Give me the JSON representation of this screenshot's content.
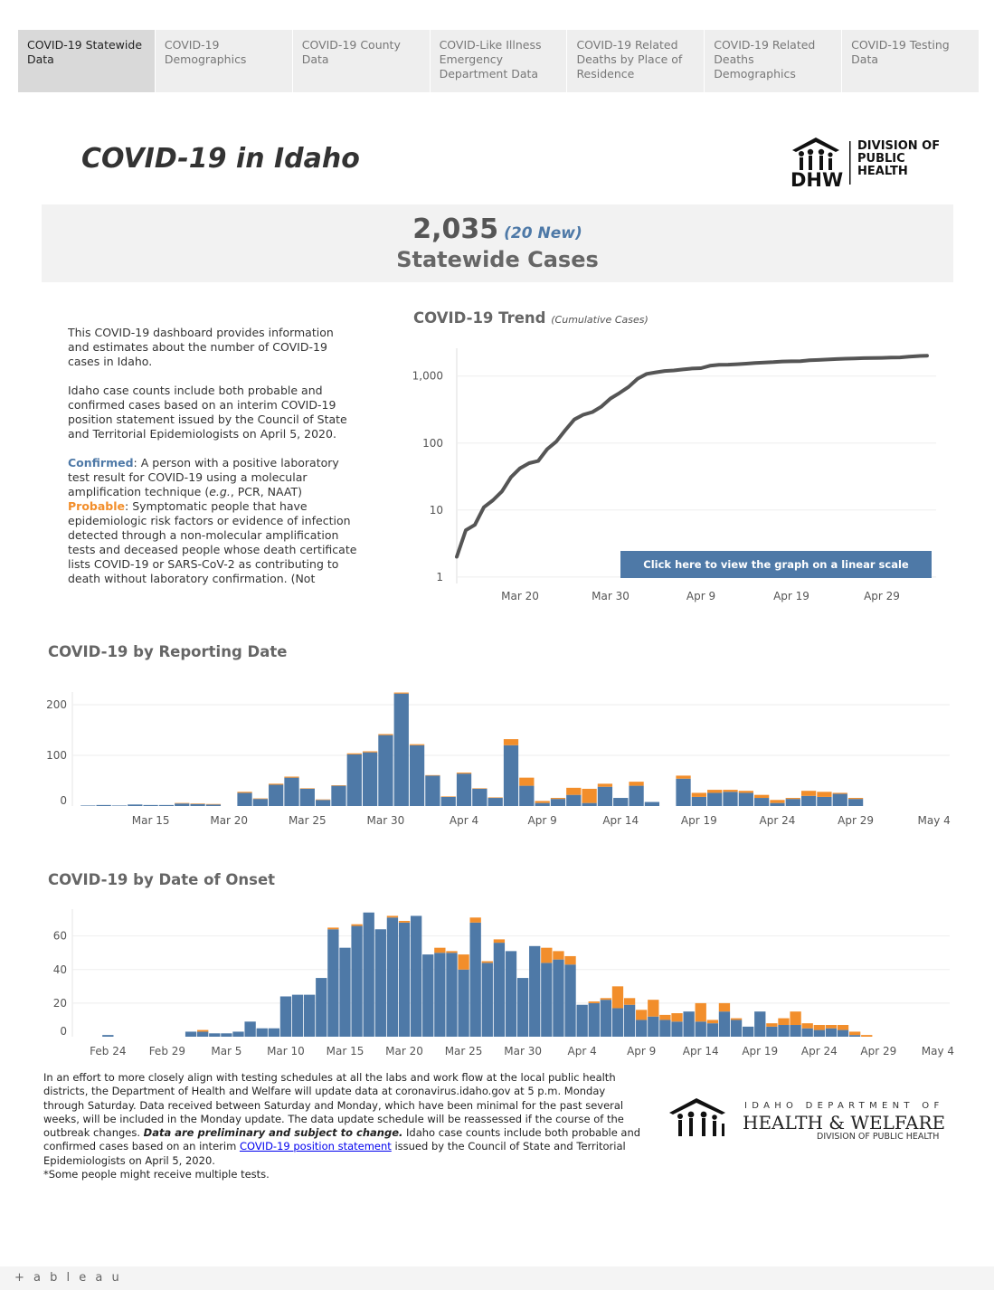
{
  "tabs": [
    {
      "label": "COVID-19 Statewide Data",
      "active": true
    },
    {
      "label": "COVID-19 Demographics"
    },
    {
      "label": "COVID-19 County Data"
    },
    {
      "label": "COVID-Like Illness Emergency Department Data"
    },
    {
      "label": "COVID-19 Related Deaths by Place of Residence"
    },
    {
      "label": "COVID-19 Related Deaths Demographics"
    },
    {
      "label": "COVID-19 Testing Data"
    }
  ],
  "header": {
    "title": "COVID-19 in Idaho",
    "logo_text": [
      "DIVISION OF",
      "PUBLIC",
      "HEALTH"
    ],
    "logo_mark": "DHW"
  },
  "kpi": {
    "value": "2,035",
    "new": "(20 New)",
    "label": "Statewide Cases"
  },
  "intro": {
    "p1": "This COVID-19 dashboard provides information and estimates about the number of COVID-19 cases in Idaho.",
    "p2": "Idaho case counts include both probable and confirmed cases based on an interim COVID-19 position statement issued by the Council of State and Territorial Epidemiologists on April 5, 2020.",
    "confirmed_label": "Confirmed",
    "confirmed_text_a": ": A person with a positive laboratory test result for COVID-19 using a molecular amplification technique (",
    "confirmed_eg": "e.g.",
    "confirmed_text_b": ", PCR, NAAT)",
    "probable_label": "Probable",
    "probable_text": ": Symptomatic people that have epidemiologic risk factors or evidence of infection detected through a non-molecular amplification tests and deceased people whose death certificate lists  COVID-19 or SARS-CoV-2 as contributing to death without laboratory confirmation. (Not includ.."
  },
  "trend_button": "Click here to view the graph on a linear scale",
  "colors": {
    "confirmed": "#4e79a7",
    "probable": "#f28e2b",
    "trend_line": "#555555"
  },
  "chart_data": [
    {
      "id": "trend",
      "type": "line",
      "title": "COVID-19 Trend",
      "subtitle": "(Cumulative Cases)",
      "yscale": "log",
      "yticks": [
        1,
        10,
        100,
        1000
      ],
      "ytick_labels": [
        "1",
        "10",
        "100",
        "1,000"
      ],
      "xlim": [
        "2020-03-13",
        "2020-05-05"
      ],
      "xticks": [
        {
          "date": "2020-03-20",
          "label": "Mar 20"
        },
        {
          "date": "2020-03-30",
          "label": "Mar 30"
        },
        {
          "date": "2020-04-09",
          "label": "Apr 9"
        },
        {
          "date": "2020-04-19",
          "label": "Apr 19"
        },
        {
          "date": "2020-04-29",
          "label": "Apr 29"
        }
      ],
      "x": [
        "2020-03-13",
        "2020-03-14",
        "2020-03-15",
        "2020-03-16",
        "2020-03-17",
        "2020-03-18",
        "2020-03-19",
        "2020-03-20",
        "2020-03-21",
        "2020-03-22",
        "2020-03-23",
        "2020-03-24",
        "2020-03-25",
        "2020-03-26",
        "2020-03-27",
        "2020-03-28",
        "2020-03-29",
        "2020-03-30",
        "2020-03-31",
        "2020-04-01",
        "2020-04-02",
        "2020-04-03",
        "2020-04-04",
        "2020-04-05",
        "2020-04-06",
        "2020-04-07",
        "2020-04-08",
        "2020-04-09",
        "2020-04-10",
        "2020-04-11",
        "2020-04-12",
        "2020-04-13",
        "2020-04-14",
        "2020-04-15",
        "2020-04-16",
        "2020-04-17",
        "2020-04-18",
        "2020-04-19",
        "2020-04-20",
        "2020-04-21",
        "2020-04-22",
        "2020-04-23",
        "2020-04-24",
        "2020-04-25",
        "2020-04-26",
        "2020-04-27",
        "2020-04-28",
        "2020-04-29",
        "2020-04-30",
        "2020-05-01",
        "2020-05-02",
        "2020-05-03",
        "2020-05-04"
      ],
      "values": [
        2,
        5,
        6,
        11,
        14,
        19,
        31,
        42,
        50,
        54,
        81,
        105,
        156,
        225,
        265,
        290,
        351,
        463,
        559,
        689,
        915,
        1078,
        1138,
        1191,
        1213,
        1257,
        1297,
        1311,
        1427,
        1473,
        1483,
        1505,
        1534,
        1568,
        1598,
        1614,
        1649,
        1662,
        1670,
        1720,
        1740,
        1768,
        1796,
        1818,
        1834,
        1855,
        1866,
        1871,
        1886,
        1901,
        1949,
        1987,
        2015
      ]
    },
    {
      "id": "reporting",
      "type": "bar",
      "stacked": true,
      "title": "COVID-19 by Reporting Date",
      "yticks": [
        0,
        100,
        200
      ],
      "ylim": [
        0,
        225
      ],
      "xlim": [
        "2020-03-10",
        "2020-05-05"
      ],
      "xticks": [
        {
          "date": "2020-03-15",
          "label": "Mar 15"
        },
        {
          "date": "2020-03-20",
          "label": "Mar 20"
        },
        {
          "date": "2020-03-25",
          "label": "Mar 25"
        },
        {
          "date": "2020-03-30",
          "label": "Mar 30"
        },
        {
          "date": "2020-04-04",
          "label": "Apr 4"
        },
        {
          "date": "2020-04-09",
          "label": "Apr 9"
        },
        {
          "date": "2020-04-14",
          "label": "Apr 14"
        },
        {
          "date": "2020-04-19",
          "label": "Apr 19"
        },
        {
          "date": "2020-04-24",
          "label": "Apr 24"
        },
        {
          "date": "2020-04-29",
          "label": "Apr 29"
        },
        {
          "date": "2020-05-04",
          "label": "May 4"
        }
      ],
      "x": [
        "2020-03-11",
        "2020-03-12",
        "2020-03-13",
        "2020-03-14",
        "2020-03-15",
        "2020-03-16",
        "2020-03-17",
        "2020-03-18",
        "2020-03-19",
        "2020-03-20",
        "2020-03-21",
        "2020-03-22",
        "2020-03-23",
        "2020-03-24",
        "2020-03-25",
        "2020-03-26",
        "2020-03-27",
        "2020-03-28",
        "2020-03-29",
        "2020-03-30",
        "2020-03-31",
        "2020-04-01",
        "2020-04-02",
        "2020-04-03",
        "2020-04-04",
        "2020-04-05",
        "2020-04-06",
        "2020-04-07",
        "2020-04-08",
        "2020-04-09",
        "2020-04-10",
        "2020-04-11",
        "2020-04-12",
        "2020-04-13",
        "2020-04-14",
        "2020-04-15",
        "2020-04-16",
        "2020-04-17",
        "2020-04-18",
        "2020-04-19",
        "2020-04-20",
        "2020-04-21",
        "2020-04-22",
        "2020-04-23",
        "2020-04-24",
        "2020-04-25",
        "2020-04-26",
        "2020-04-27",
        "2020-04-28",
        "2020-04-29",
        "2020-04-30",
        "2020-05-01",
        "2020-05-02"
      ],
      "series": [
        {
          "name": "Confirmed",
          "values": [
            1,
            2,
            1,
            3,
            2,
            2,
            5,
            4,
            3,
            0,
            26,
            14,
            42,
            56,
            34,
            12,
            40,
            102,
            106,
            140,
            222,
            120,
            60,
            18,
            64,
            34,
            16,
            120,
            40,
            6,
            14,
            22,
            6,
            38,
            16,
            40,
            8,
            0,
            54,
            18,
            26,
            28,
            26,
            16,
            6,
            14,
            20,
            18,
            24,
            14,
            0,
            0,
            0
          ]
        },
        {
          "name": "Probable",
          "values": [
            0,
            0,
            0,
            0,
            0,
            0,
            1,
            1,
            1,
            0,
            2,
            1,
            2,
            2,
            1,
            1,
            1,
            2,
            2,
            2,
            2,
            2,
            1,
            1,
            2,
            1,
            1,
            12,
            16,
            4,
            2,
            14,
            28,
            6,
            0,
            8,
            0,
            0,
            6,
            8,
            6,
            4,
            4,
            6,
            6,
            2,
            10,
            10,
            2,
            2,
            0,
            0,
            0
          ]
        }
      ]
    },
    {
      "id": "onset",
      "type": "bar",
      "stacked": true,
      "title": "COVID-19 by Date of Onset",
      "yticks": [
        0,
        20,
        40,
        60
      ],
      "ylim": [
        0,
        76
      ],
      "xlim": [
        "2020-02-21",
        "2020-05-05"
      ],
      "xticks": [
        {
          "date": "2020-02-24",
          "label": "Feb 24"
        },
        {
          "date": "2020-02-29",
          "label": "Feb 29"
        },
        {
          "date": "2020-03-05",
          "label": "Mar 5"
        },
        {
          "date": "2020-03-10",
          "label": "Mar 10"
        },
        {
          "date": "2020-03-15",
          "label": "Mar 15"
        },
        {
          "date": "2020-03-20",
          "label": "Mar 20"
        },
        {
          "date": "2020-03-25",
          "label": "Mar 25"
        },
        {
          "date": "2020-03-30",
          "label": "Mar 30"
        },
        {
          "date": "2020-04-04",
          "label": "Apr 4"
        },
        {
          "date": "2020-04-09",
          "label": "Apr 9"
        },
        {
          "date": "2020-04-14",
          "label": "Apr 14"
        },
        {
          "date": "2020-04-19",
          "label": "Apr 19"
        },
        {
          "date": "2020-04-24",
          "label": "Apr 24"
        },
        {
          "date": "2020-04-29",
          "label": "Apr 29"
        },
        {
          "date": "2020-05-04",
          "label": "May 4"
        }
      ],
      "x": [
        "2020-02-24",
        "2020-02-25",
        "2020-02-26",
        "2020-02-27",
        "2020-02-28",
        "2020-02-29",
        "2020-03-01",
        "2020-03-02",
        "2020-03-03",
        "2020-03-04",
        "2020-03-05",
        "2020-03-06",
        "2020-03-07",
        "2020-03-08",
        "2020-03-09",
        "2020-03-10",
        "2020-03-11",
        "2020-03-12",
        "2020-03-13",
        "2020-03-14",
        "2020-03-15",
        "2020-03-16",
        "2020-03-17",
        "2020-03-18",
        "2020-03-19",
        "2020-03-20",
        "2020-03-21",
        "2020-03-22",
        "2020-03-23",
        "2020-03-24",
        "2020-03-25",
        "2020-03-26",
        "2020-03-27",
        "2020-03-28",
        "2020-03-29",
        "2020-03-30",
        "2020-03-31",
        "2020-04-01",
        "2020-04-02",
        "2020-04-03",
        "2020-04-04",
        "2020-04-05",
        "2020-04-06",
        "2020-04-07",
        "2020-04-08",
        "2020-04-09",
        "2020-04-10",
        "2020-04-11",
        "2020-04-12",
        "2020-04-13",
        "2020-04-14",
        "2020-04-15",
        "2020-04-16",
        "2020-04-17",
        "2020-04-18",
        "2020-04-19",
        "2020-04-20",
        "2020-04-21",
        "2020-04-22",
        "2020-04-23",
        "2020-04-24",
        "2020-04-25",
        "2020-04-26",
        "2020-04-27",
        "2020-04-28",
        "2020-04-29",
        "2020-04-30",
        "2020-05-01",
        "2020-05-02"
      ],
      "series": [
        {
          "name": "Confirmed",
          "values": [
            1,
            0,
            0,
            0,
            0,
            0,
            0,
            3,
            3,
            2,
            2,
            3,
            9,
            5,
            5,
            24,
            25,
            25,
            35,
            64,
            53,
            66,
            74,
            64,
            71,
            68,
            72,
            49,
            50,
            50,
            40,
            68,
            44,
            56,
            51,
            35,
            54,
            44,
            46,
            43,
            19,
            20,
            22,
            17,
            19,
            10,
            12,
            10,
            9,
            15,
            9,
            8,
            15,
            10,
            6,
            15,
            6,
            7,
            7,
            5,
            4,
            5,
            4,
            1,
            0,
            0,
            0,
            0,
            0
          ],
          "comment": ""
        },
        {
          "name": "Probable",
          "values": [
            0,
            0,
            0,
            0,
            0,
            0,
            0,
            0,
            1,
            0,
            0,
            0,
            0,
            0,
            0,
            0,
            0,
            0,
            0,
            1,
            0,
            1,
            0,
            0,
            1,
            1,
            0,
            0,
            3,
            1,
            9,
            3,
            1,
            2,
            0,
            0,
            0,
            9,
            5,
            5,
            0,
            1,
            1,
            13,
            4,
            6,
            10,
            3,
            5,
            0,
            11,
            2,
            5,
            1,
            0,
            0,
            2,
            4,
            8,
            3,
            3,
            2,
            3,
            2,
            1,
            0,
            0,
            0,
            0
          ]
        }
      ]
    }
  ],
  "footer": {
    "text1": "In an effort to more closely align with testing schedules at all the labs and work flow at the local public health districts, the Department of Health and Welfare will update data at coronavirus.idaho.gov at 5 p.m. Monday through Saturday. Data received between Saturday and Monday, which have been minimal for the past several weeks, will be included in the Monday update. The data update schedule will be reassessed if the course of the outbreak changes. ",
    "emph": "Data are preliminary and subject to change.",
    "text2": " Idaho case counts include both probable and confirmed cases based on an interim ",
    "link": "COVID-19 position statement",
    "text3": " issued by the Council of State and Territorial Epidemiologists on April 5, 2020.",
    "note": "*Some people might receive multiple tests."
  },
  "idhw_logo": {
    "line1": "IDAHO DEPARTMENT OF",
    "line2": "HEALTH & WELFARE",
    "line3": "DIVISION OF PUBLIC HEALTH"
  },
  "tableau": "+ a b l e a u"
}
